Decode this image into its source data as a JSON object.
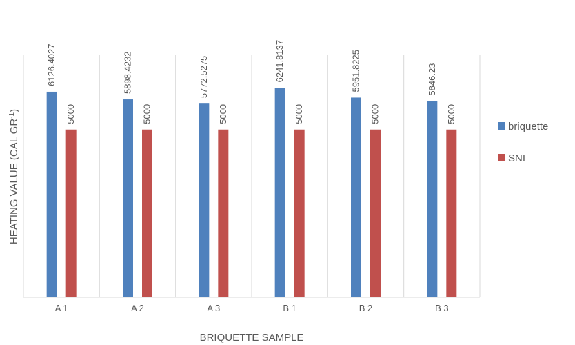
{
  "chart_data": {
    "type": "bar",
    "title": "",
    "xlabel": "BRIQUETTE SAMPLE",
    "ylabel": "HEATING VALUE (CAL GR",
    "ylabel_sup": "-1",
    "ylabel_close": ")",
    "categories": [
      "A 1",
      "A 2",
      "A 3",
      "B 1",
      "B 2",
      "B 3"
    ],
    "series": [
      {
        "name": "briquette",
        "color": "#4F81BD",
        "values": [
          6126.4027,
          5898.4232,
          5772.5275,
          6241.8137,
          5951.8225,
          5846.23
        ],
        "labels": [
          "6126.4027",
          "5898.4232",
          "5772.5275",
          "6241.8137",
          "5951.8225",
          "5846.23"
        ]
      },
      {
        "name": "SNI",
        "color": "#C0504D",
        "values": [
          5000,
          5000,
          5000,
          5000,
          5000,
          5000
        ],
        "labels": [
          "5000",
          "5000",
          "5000",
          "5000",
          "5000",
          "5000"
        ]
      }
    ],
    "ylim": [
      0,
      8000
    ],
    "grid": false,
    "vertical_separators": true,
    "legend_position": "right"
  }
}
